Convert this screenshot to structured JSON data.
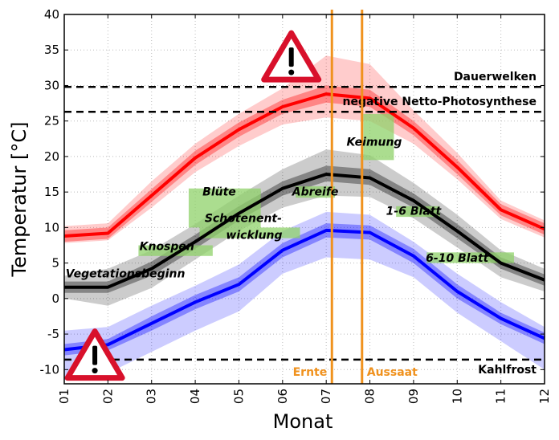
{
  "chart_data": {
    "type": "line",
    "xlabel": "Monat",
    "ylabel": "Temperatur [°C]",
    "x": [
      "01",
      "02",
      "03",
      "04",
      "05",
      "06",
      "07",
      "08",
      "09",
      "10",
      "11",
      "12"
    ],
    "xlim": [
      1,
      12
    ],
    "ylim": [
      -12,
      40
    ],
    "yticks": [
      -10,
      -5,
      0,
      5,
      10,
      15,
      20,
      25,
      30,
      35,
      40
    ],
    "grid": true,
    "series": [
      {
        "color": "#ff0000",
        "values": [
          8.8,
          9.2,
          14.5,
          19.8,
          23.8,
          27.0,
          28.8,
          28.2,
          24.0,
          18.5,
          12.5,
          9.8
        ],
        "band_inner": {
          "low": [
            8.0,
            8.4,
            13.6,
            18.8,
            22.8,
            26.0,
            27.6,
            27.0,
            23.0,
            17.5,
            11.7,
            9.0
          ],
          "high": [
            9.6,
            10.0,
            15.4,
            20.8,
            24.8,
            28.0,
            30.0,
            29.4,
            25.0,
            19.5,
            13.3,
            10.6
          ]
        },
        "band_outer": {
          "low": [
            7.8,
            8.2,
            12.8,
            17.8,
            21.5,
            24.5,
            25.5,
            25.0,
            21.8,
            16.8,
            11.2,
            8.6
          ],
          "high": [
            10.2,
            10.6,
            16.5,
            21.8,
            26.0,
            29.6,
            34.2,
            33.0,
            26.5,
            20.5,
            13.8,
            11.0
          ]
        }
      },
      {
        "color": "#000000",
        "values": [
          1.6,
          1.6,
          4.2,
          8.0,
          12.0,
          15.5,
          17.5,
          17.0,
          13.8,
          9.5,
          5.0,
          2.6
        ],
        "band_inner": {
          "low": [
            0.8,
            0.8,
            3.2,
            7.0,
            11.0,
            14.5,
            16.5,
            16.0,
            12.8,
            8.5,
            4.2,
            1.8
          ],
          "high": [
            2.4,
            2.4,
            5.2,
            9.0,
            13.0,
            16.5,
            18.7,
            18.2,
            14.8,
            10.5,
            5.8,
            3.4
          ]
        },
        "band_outer": {
          "low": [
            0.0,
            -1.0,
            1.5,
            5.5,
            9.5,
            12.8,
            14.5,
            14.3,
            11.3,
            7.2,
            3.0,
            1.0
          ],
          "high": [
            3.2,
            4.2,
            6.8,
            10.5,
            14.5,
            18.2,
            21.0,
            20.2,
            16.3,
            11.8,
            6.8,
            4.2
          ]
        }
      },
      {
        "color": "#0000ff",
        "values": [
          -7.2,
          -6.5,
          -3.5,
          -0.5,
          2.0,
          6.8,
          9.6,
          9.3,
          6.0,
          1.0,
          -2.8,
          -5.6
        ],
        "band_inner": {
          "low": [
            -8.0,
            -7.3,
            -4.5,
            -1.5,
            1.0,
            5.8,
            8.6,
            8.3,
            5.0,
            0.0,
            -3.6,
            -6.4
          ],
          "high": [
            -6.4,
            -5.7,
            -2.5,
            0.5,
            3.0,
            7.8,
            10.6,
            10.3,
            7.0,
            2.0,
            -2.0,
            -4.8
          ]
        },
        "band_outer": {
          "low": [
            -11.5,
            -10.5,
            -7.5,
            -4.5,
            -1.8,
            3.5,
            5.8,
            5.5,
            3.0,
            -2.0,
            -6.0,
            -10.0
          ],
          "high": [
            -4.5,
            -4.0,
            -1.0,
            1.8,
            4.8,
            9.5,
            12.2,
            11.8,
            8.0,
            3.5,
            -0.5,
            -4.0
          ]
        }
      }
    ],
    "thresholds": [
      {
        "label": "Dauerwelken",
        "value": 29.8
      },
      {
        "label": "negative Netto-Photosynthese",
        "value": 26.3
      },
      {
        "label": "Kahlfrost",
        "value": -8.6
      }
    ],
    "vlines": [
      {
        "label": "Ernte",
        "x": 7.13,
        "color": "#f0921e"
      },
      {
        "label": "Aussaat",
        "x": 7.82,
        "color": "#f0921e"
      }
    ],
    "stages": [
      {
        "label": "Vegetationsbeginn",
        "rect": null,
        "text_x": 2.4,
        "text_y": 3.0
      },
      {
        "label": "Knospen",
        "rect": {
          "x0": 2.7,
          "x1": 4.4,
          "y0": 6.0,
          "y1": 7.5
        },
        "text_x": 3.35,
        "text_y": 6.8
      },
      {
        "label": "Blüte",
        "rect": {
          "x0": 3.85,
          "x1": 5.5,
          "y0": 10.0,
          "y1": 15.5
        },
        "text_x": 4.55,
        "text_y": 14.5
      },
      {
        "label": "Schotenent-",
        "rect": {
          "x0": 4.1,
          "x1": 6.4,
          "y0": 8.5,
          "y1": 10.0
        },
        "text_x": 5.1,
        "text_y": 10.8
      },
      {
        "label": "wicklung",
        "rect": null,
        "text_x": 5.35,
        "text_y": 8.4
      },
      {
        "label": "Abreife",
        "rect": {
          "x0": 6.3,
          "x1": 7.2,
          "y0": 14.2,
          "y1": 15.8
        },
        "text_x": 6.75,
        "text_y": 14.5
      },
      {
        "label": "Keimung",
        "rect": {
          "x0": 7.85,
          "x1": 8.55,
          "y0": 19.5,
          "y1": 26.0
        },
        "text_x": 8.1,
        "text_y": 21.5
      },
      {
        "label": "1-6 Blatt",
        "rect": {
          "x0": 8.6,
          "x1": 9.6,
          "y0": 11.5,
          "y1": 13.0
        },
        "text_x": 9.0,
        "text_y": 11.8
      },
      {
        "label": "6-10 Blatt",
        "rect": {
          "x0": 9.3,
          "x1": 11.3,
          "y0": 5.0,
          "y1": 6.5
        },
        "text_x": 10.0,
        "text_y": 5.2
      }
    ],
    "stage_color": "#8fd16a",
    "warnings": [
      {
        "icon": "warning-triangle-icon",
        "x": 6.2,
        "y": 34.0
      },
      {
        "icon": "warning-triangle-icon",
        "x": 1.7,
        "y": -8.0
      }
    ]
  }
}
